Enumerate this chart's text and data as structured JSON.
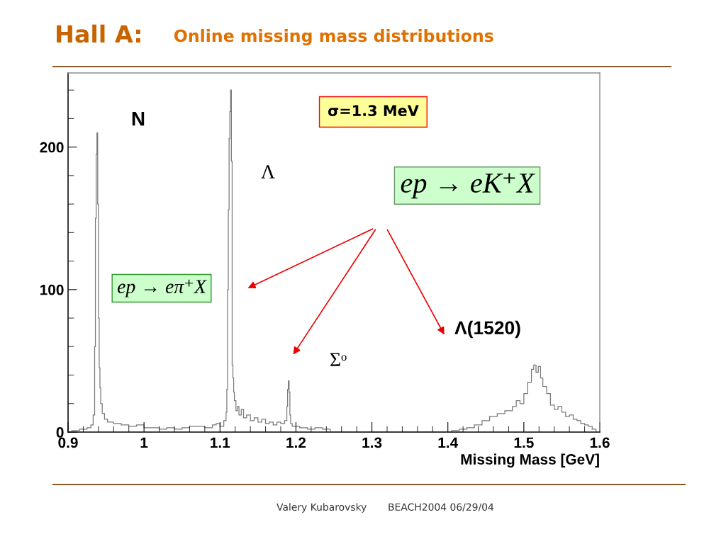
{
  "chart_data": {
    "type": "histogram",
    "title": "Hall A:",
    "subtitle": "Online missing mass distributions",
    "xlabel": "Missing Mass [GeV]",
    "bins": [
      0.905,
      0.915,
      0.925,
      0.93,
      0.933,
      0.935,
      0.936,
      0.937,
      0.938,
      0.939,
      0.94,
      0.941,
      0.942,
      0.943,
      0.945,
      0.948,
      0.952,
      0.96,
      0.97,
      0.98,
      0.99,
      1.0,
      1.01,
      1.02,
      1.03,
      1.04,
      1.05,
      1.06,
      1.07,
      1.08,
      1.09,
      1.095,
      1.1,
      1.105,
      1.108,
      1.109,
      1.11,
      1.111,
      1.112,
      1.113,
      1.114,
      1.115,
      1.116,
      1.117,
      1.118,
      1.119,
      1.121,
      1.123,
      1.125,
      1.128,
      1.131,
      1.135,
      1.14,
      1.145,
      1.15,
      1.155,
      1.16,
      1.165,
      1.17,
      1.175,
      1.18,
      1.185,
      1.188,
      1.189,
      1.19,
      1.191,
      1.192,
      1.193,
      1.195,
      1.205,
      1.215,
      1.225,
      1.235,
      1.245,
      1.405,
      1.415,
      1.425,
      1.435,
      1.445,
      1.455,
      1.465,
      1.475,
      1.485,
      1.49,
      1.495,
      1.5,
      1.505,
      1.51,
      1.513,
      1.516,
      1.519,
      1.522,
      1.525,
      1.53,
      1.535,
      1.54,
      1.545,
      1.55,
      1.555,
      1.56,
      1.565,
      1.57,
      1.575,
      1.58,
      1.585,
      1.59,
      1.595
    ],
    "values": [
      1,
      2,
      3,
      5,
      12,
      60,
      150,
      195,
      210,
      160,
      80,
      45,
      31,
      20,
      13,
      9,
      7,
      6,
      5,
      4,
      5,
      3,
      3,
      2,
      3,
      2,
      3,
      4,
      4,
      3,
      5,
      6,
      4,
      8,
      14,
      30,
      100,
      156,
      206,
      225,
      240,
      190,
      47,
      38,
      28,
      22,
      15,
      18,
      12,
      16,
      10,
      12,
      8,
      10,
      7,
      9,
      6,
      7,
      5,
      7,
      6,
      8,
      18,
      30,
      36,
      28,
      12,
      6,
      4,
      3,
      2,
      3,
      2,
      0,
      1,
      2,
      3,
      5,
      8,
      11,
      13,
      15,
      18,
      22,
      20,
      27,
      35,
      44,
      47,
      42,
      46,
      38,
      32,
      27,
      19,
      16,
      18,
      14,
      11,
      12,
      9,
      8,
      6,
      5,
      4,
      2
    ],
    "color": "#7a7a7a",
    "xlim": [
      0.9,
      1.6
    ],
    "ylim": [
      0,
      252
    ],
    "xticks": [
      0.9,
      {
        "value": 0.92,
        "label": null
      },
      {
        "value": 0.94,
        "label": null
      },
      {
        "value": 0.96,
        "label": null
      },
      {
        "value": 0.98,
        "label": null
      },
      1,
      {
        "value": 1.02,
        "label": null
      },
      {
        "value": 1.04,
        "label": null
      },
      {
        "value": 1.06,
        "label": null
      },
      {
        "value": 1.08,
        "label": null
      },
      1.1,
      {
        "value": 1.12,
        "label": null
      },
      {
        "value": 1.14,
        "label": null
      },
      {
        "value": 1.16,
        "label": null
      },
      {
        "value": 1.18,
        "label": null
      },
      1.2,
      {
        "value": 1.22,
        "label": null
      },
      {
        "value": 1.24,
        "label": null
      },
      {
        "value": 1.26,
        "label": null
      },
      {
        "value": 1.28,
        "label": null
      },
      1.3,
      {
        "value": 1.32,
        "label": null
      },
      {
        "value": 1.34,
        "label": null
      },
      {
        "value": 1.36,
        "label": null
      },
      {
        "value": 1.38,
        "label": null
      },
      1.4,
      {
        "value": 1.42,
        "label": null
      },
      {
        "value": 1.44,
        "label": null
      },
      {
        "value": 1.46,
        "label": null
      },
      {
        "value": 1.48,
        "label": null
      },
      1.5,
      {
        "value": 1.52,
        "label": null
      },
      {
        "value": 1.54,
        "label": null
      },
      {
        "value": 1.56,
        "label": null
      },
      {
        "value": 1.58,
        "label": null
      },
      1.6
    ],
    "yticks": [
      0,
      {
        "value": 20,
        "label": null
      },
      {
        "value": 40,
        "label": null
      },
      {
        "value": 60,
        "label": null
      },
      {
        "value": 80,
        "label": null
      },
      100,
      {
        "value": 120,
        "label": null
      },
      {
        "value": 140,
        "label": null
      },
      {
        "value": 160,
        "label": null
      },
      {
        "value": 180,
        "label": null
      },
      200,
      {
        "value": 220,
        "label": null
      },
      {
        "value": 240,
        "label": null
      }
    ],
    "annotations": [
      "N",
      "Λ",
      "Σᵒ",
      "Λ(1520)",
      "σ=1.3 MeV",
      "ep → eK⁺X",
      "ep → eπ⁺X",
      "Valery Kubarovsky",
      "BEACH2004 06/29/04"
    ]
  }
}
